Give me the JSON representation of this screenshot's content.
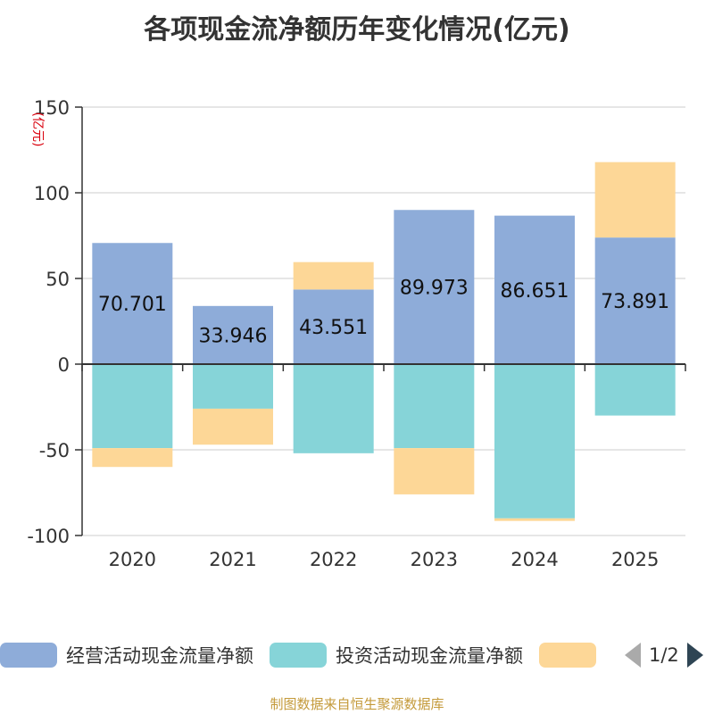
{
  "chart_data": {
    "type": "bar",
    "stacked": true,
    "title": "各项现金流净额历年变化情况(亿元)",
    "ylabel": "(亿元)",
    "ylim": [
      -100,
      150
    ],
    "yticks": [
      150,
      100,
      50,
      0,
      -50,
      -100
    ],
    "categories": [
      "2020",
      "2021",
      "2022",
      "2023",
      "2024",
      "2025"
    ],
    "series": [
      {
        "name": "经营活动现金流量净额",
        "color": "#8eacd9",
        "values": [
          70.701,
          33.946,
          43.551,
          89.973,
          86.651,
          73.891
        ],
        "show_labels": true
      },
      {
        "name": "投资活动现金流量净额",
        "color": "#86d4d8",
        "values": [
          -49,
          -26,
          -52,
          -49,
          -90,
          -30
        ],
        "show_labels": false
      },
      {
        "name": "",
        "color": "#fdd797",
        "values": [
          -11,
          -21,
          16,
          -27,
          -1.5,
          44
        ],
        "show_labels": false
      }
    ],
    "legend_position": "bottom"
  },
  "legend_page": "1/2",
  "source": "制图数据来自恒生聚源数据库"
}
